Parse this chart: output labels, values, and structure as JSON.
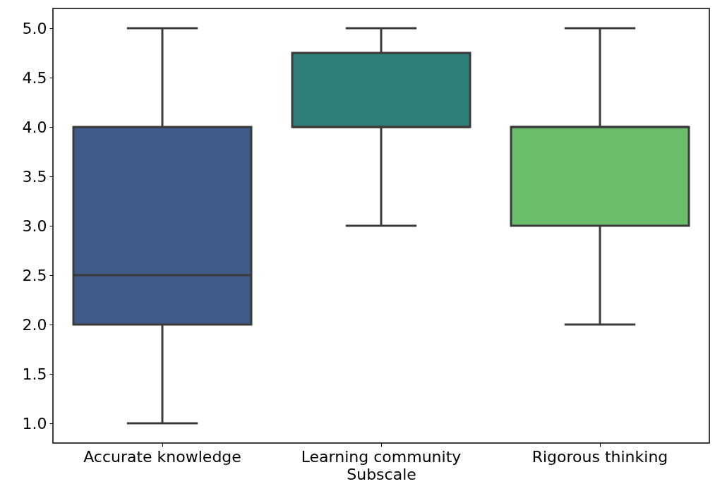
{
  "chart_data": {
    "type": "box",
    "xlabel": "Subscale",
    "categories": [
      "Accurate knowledge",
      "Learning community",
      "Rigorous thinking"
    ],
    "ylim": [
      0.8,
      5.2
    ],
    "yticks": [
      {
        "value": 1,
        "label": "1.0"
      },
      {
        "value": 1.5,
        "label": "1.5"
      },
      {
        "value": 2,
        "label": "2.0"
      },
      {
        "value": 2.5,
        "label": "2.5"
      },
      {
        "value": 3,
        "label": "3.0"
      },
      {
        "value": 3.5,
        "label": "3.5"
      },
      {
        "value": 4,
        "label": "4.0"
      },
      {
        "value": 4.5,
        "label": "4.5"
      },
      {
        "value": 5,
        "label": "5.0"
      }
    ],
    "colors": [
      "#425a88",
      "#2e7f7a",
      "#6abd6a"
    ],
    "boxes": [
      {
        "low": 1,
        "q1": 2,
        "median": 2.5,
        "q3": 4,
        "high": 5
      },
      {
        "low": 3,
        "q1": 4,
        "median": 4,
        "q3": 4.75,
        "high": 5
      },
      {
        "low": 2,
        "q1": 3,
        "median": 4,
        "q3": 4,
        "high": 5
      }
    ],
    "grid": false
  }
}
